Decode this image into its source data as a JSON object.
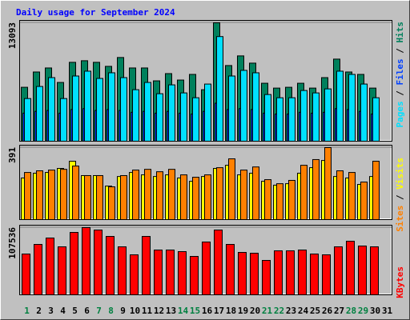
{
  "chart_data": {
    "type": "bar",
    "title": "Daily usage for September 2024",
    "title_color": "#0000ff",
    "categories": [
      "1",
      "2",
      "3",
      "4",
      "5",
      "6",
      "7",
      "8",
      "9",
      "10",
      "11",
      "12",
      "13",
      "14",
      "15",
      "16",
      "17",
      "18",
      "19",
      "20",
      "21",
      "22",
      "23",
      "24",
      "25",
      "26",
      "27",
      "28",
      "29",
      "30",
      "31"
    ],
    "category_colors": [
      "#008040",
      "#000000",
      "#000000",
      "#000000",
      "#000000",
      "#000000",
      "#008040",
      "#008040",
      "#000000",
      "#000000",
      "#000000",
      "#000000",
      "#000000",
      "#008040",
      "#008040",
      "#000000",
      "#000000",
      "#000000",
      "#000000",
      "#000000",
      "#008040",
      "#008040",
      "#000000",
      "#000000",
      "#000000",
      "#000000",
      "#000000",
      "#008040",
      "#008040",
      "#000000",
      "#000000"
    ],
    "legend_separator": "/",
    "panels": [
      {
        "ylim": [
          0,
          13093
        ],
        "yticks": [
          13093
        ],
        "legend_order": [
          2,
          1,
          0
        ],
        "series": [
          {
            "name": "Hits",
            "color": "#00805c",
            "values": [
              5963,
              7654,
              8099,
              6497,
              8722,
              8900,
              8722,
              8277,
              9256,
              8099,
              8099,
              6675,
              7476,
              6764,
              7387,
              5696,
              13093,
              8366,
              9434,
              8633,
              6408,
              5874,
              5963,
              6408,
              5874,
              7031,
              9078,
              7654,
              7387,
              5874,
              null
            ]
          },
          {
            "name": "Files",
            "color": "#0040ff",
            "values": [
              3100,
              3300,
              3400,
              3100,
              3500,
              3600,
              3400,
              3500,
              3400,
              3200,
              3300,
              3100,
              3300,
              3100,
              3000,
              3300,
              4200,
              3500,
              3600,
              3500,
              3100,
              3000,
              3000,
              3200,
              3100,
              3200,
              3600,
              3500,
              3300,
              3000,
              null
            ]
          },
          {
            "name": "Pages",
            "color": "#00e0ff",
            "values": [
              4717,
              6052,
              7031,
              4717,
              7209,
              7743,
              6942,
              7565,
              7031,
              5696,
              6497,
              5251,
              6230,
              5340,
              4806,
              6319,
              11570,
              7209,
              7832,
              7565,
              5162,
              4806,
              4806,
              5607,
              5340,
              5785,
              7743,
              7387,
              6319,
              4806,
              null
            ]
          }
        ]
      },
      {
        "ylim": [
          0,
          391
        ],
        "yticks": [
          391
        ],
        "legend_order": [
          1,
          0
        ],
        "series": [
          {
            "name": "Visits",
            "color": "#ffff00",
            "values": [
              226,
              252,
              256,
              278,
              317,
              239,
              239,
              182,
              234,
              256,
              243,
              234,
              243,
              226,
              208,
              234,
              278,
              295,
              243,
              252,
              208,
              187,
              195,
              252,
              282,
              321,
              234,
              226,
              191,
              234,
              null
            ]
          },
          {
            "name": "Sites",
            "color": "#ff8000",
            "values": [
              256,
              265,
              269,
              273,
              291,
              239,
              239,
              178,
              239,
              269,
              273,
              260,
              273,
              243,
              230,
              243,
              282,
              330,
              269,
              286,
              217,
              195,
              213,
              295,
              326,
              391,
              265,
              256,
              204,
              317,
              null
            ]
          }
        ]
      },
      {
        "ylim": [
          0,
          107536
        ],
        "yticks": [
          107536
        ],
        "legend_order": [
          0
        ],
        "series": [
          {
            "name": "KBytes",
            "color": "#ff0000",
            "values": [
              65280,
              80640,
              90880,
              76800,
              99840,
              107536,
              103680,
              93440,
              76800,
              64000,
              93440,
              71680,
              71680,
              69120,
              61440,
              84480,
              103680,
              80640,
              67840,
              66560,
              55040,
              70400,
              70400,
              71680,
              65280,
              64000,
              76800,
              85760,
              78080,
              76800,
              null
            ]
          }
        ]
      }
    ]
  }
}
